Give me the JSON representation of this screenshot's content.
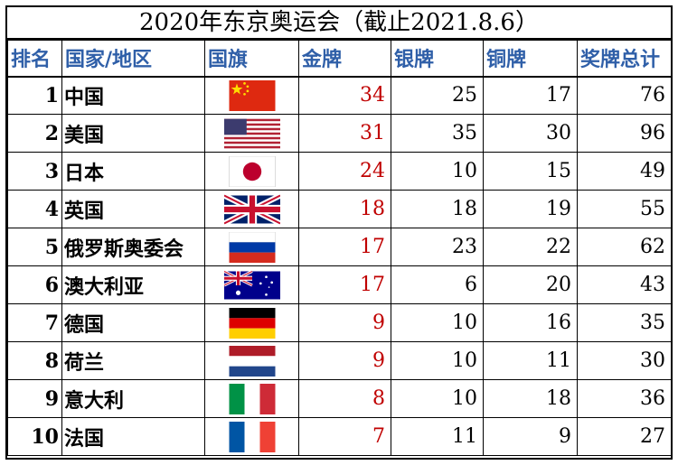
{
  "title": "2020年东京奥运会（截止2021.8.6）",
  "headers": {
    "rank": "排名",
    "country": "国家/地区",
    "flag": "国旗",
    "gold": "金牌",
    "silver": "银牌",
    "bronze": "铜牌",
    "total": "奖牌总计"
  },
  "rows": [
    {
      "rank": "1",
      "country": "中国",
      "flag_icon": "china-flag-icon",
      "gold": "34",
      "silver": "25",
      "bronze": "17",
      "total": "76"
    },
    {
      "rank": "2",
      "country": "美国",
      "flag_icon": "usa-flag-icon",
      "gold": "31",
      "silver": "35",
      "bronze": "30",
      "total": "96"
    },
    {
      "rank": "3",
      "country": "日本",
      "flag_icon": "japan-flag-icon",
      "gold": "24",
      "silver": "10",
      "bronze": "15",
      "total": "49"
    },
    {
      "rank": "4",
      "country": "英国",
      "flag_icon": "uk-flag-icon",
      "gold": "18",
      "silver": "18",
      "bronze": "19",
      "total": "55"
    },
    {
      "rank": "5",
      "country": "俄罗斯奥委会",
      "flag_icon": "russia-flag-icon",
      "gold": "17",
      "silver": "23",
      "bronze": "22",
      "total": "62"
    },
    {
      "rank": "6",
      "country": "澳大利亚",
      "flag_icon": "australia-flag-icon",
      "gold": "17",
      "silver": "6",
      "bronze": "20",
      "total": "43"
    },
    {
      "rank": "7",
      "country": "德国",
      "flag_icon": "germany-flag-icon",
      "gold": "9",
      "silver": "10",
      "bronze": "16",
      "total": "35"
    },
    {
      "rank": "8",
      "country": "荷兰",
      "flag_icon": "netherlands-flag-icon",
      "gold": "9",
      "silver": "10",
      "bronze": "11",
      "total": "30"
    },
    {
      "rank": "9",
      "country": "意大利",
      "flag_icon": "italy-flag-icon",
      "gold": "8",
      "silver": "10",
      "bronze": "18",
      "total": "36"
    },
    {
      "rank": "10",
      "country": "法国",
      "flag_icon": "france-flag-icon",
      "gold": "7",
      "silver": "11",
      "bronze": "9",
      "total": "27"
    }
  ],
  "colors": {
    "header_text": "#2f5fa8",
    "gold_text": "#c00000",
    "border": "#000000"
  }
}
